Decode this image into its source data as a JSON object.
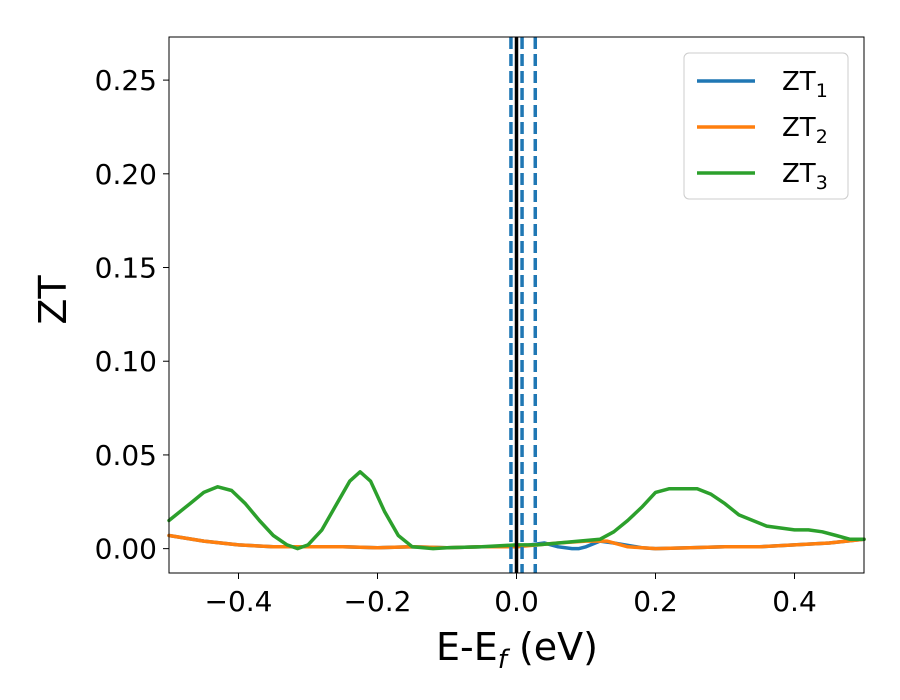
{
  "chart_data": {
    "type": "line",
    "xlabel": {
      "main": "E-E",
      "sub": "f",
      "unit": " (eV)"
    },
    "ylabel": "ZT",
    "xlim": [
      -0.5,
      0.5
    ],
    "ylim": [
      -0.013,
      0.273
    ],
    "xticks": [
      -0.4,
      -0.2,
      0.0,
      0.2,
      0.4
    ],
    "xtick_labels": [
      "−0.4",
      "−0.2",
      "0.0",
      "0.2",
      "0.4"
    ],
    "yticks": [
      0.0,
      0.05,
      0.1,
      0.15,
      0.2,
      0.25
    ],
    "ytick_labels": [
      "0.00",
      "0.05",
      "0.10",
      "0.15",
      "0.20",
      "0.25"
    ],
    "grid": false,
    "legend_position": "top-right",
    "series": [
      {
        "name": "ZT",
        "subscript": "1",
        "color": "#1f77b4",
        "x": [
          -0.5,
          -0.45,
          -0.4,
          -0.35,
          -0.3,
          -0.25,
          -0.2,
          -0.15,
          -0.1,
          -0.05,
          0.0,
          0.02,
          0.04,
          0.06,
          0.08,
          0.09,
          0.1,
          0.12,
          0.14,
          0.18,
          0.2,
          0.25,
          0.3,
          0.35,
          0.4,
          0.45,
          0.5
        ],
        "y": [
          0.007,
          0.004,
          0.002,
          0.001,
          0.001,
          0.001,
          0.0005,
          0.001,
          0.0005,
          0.001,
          0.001,
          0.002,
          0.003,
          0.001,
          0.0,
          0.0,
          0.001,
          0.004,
          0.003,
          0.0005,
          0.0,
          0.0005,
          0.001,
          0.001,
          0.002,
          0.003,
          0.005
        ]
      },
      {
        "name": "ZT",
        "subscript": "2",
        "color": "#ff7f0e",
        "x": [
          -0.5,
          -0.45,
          -0.4,
          -0.35,
          -0.3,
          -0.25,
          -0.2,
          -0.15,
          -0.1,
          -0.05,
          0.0,
          0.03,
          0.06,
          0.1,
          0.13,
          0.16,
          0.2,
          0.25,
          0.3,
          0.35,
          0.4,
          0.45,
          0.5
        ],
        "y": [
          0.007,
          0.004,
          0.002,
          0.001,
          0.001,
          0.001,
          0.0005,
          0.001,
          0.0005,
          0.001,
          0.001,
          0.002,
          0.003,
          0.004,
          0.004,
          0.001,
          0.0,
          0.0005,
          0.001,
          0.001,
          0.002,
          0.003,
          0.005
        ]
      },
      {
        "name": "ZT",
        "subscript": "3",
        "color": "#2ca02c",
        "x": [
          -0.5,
          -0.47,
          -0.45,
          -0.43,
          -0.41,
          -0.39,
          -0.37,
          -0.35,
          -0.33,
          -0.315,
          -0.3,
          -0.28,
          -0.26,
          -0.24,
          -0.225,
          -0.21,
          -0.19,
          -0.17,
          -0.15,
          -0.12,
          -0.1,
          -0.05,
          0.0,
          0.03,
          0.06,
          0.09,
          0.12,
          0.14,
          0.16,
          0.18,
          0.2,
          0.22,
          0.24,
          0.26,
          0.28,
          0.3,
          0.32,
          0.34,
          0.36,
          0.38,
          0.4,
          0.42,
          0.44,
          0.46,
          0.48,
          0.5
        ],
        "y": [
          0.015,
          0.024,
          0.03,
          0.033,
          0.031,
          0.024,
          0.015,
          0.007,
          0.002,
          0.0,
          0.002,
          0.01,
          0.023,
          0.036,
          0.041,
          0.036,
          0.02,
          0.007,
          0.001,
          0.0,
          0.0005,
          0.001,
          0.002,
          0.002,
          0.003,
          0.004,
          0.005,
          0.009,
          0.015,
          0.022,
          0.03,
          0.032,
          0.032,
          0.032,
          0.029,
          0.024,
          0.018,
          0.015,
          0.012,
          0.011,
          0.01,
          0.01,
          0.009,
          0.007,
          0.005,
          0.005
        ]
      }
    ],
    "vlines": [
      {
        "x": 0.0,
        "color": "#000000",
        "style": "solid"
      },
      {
        "x": -0.008,
        "color": "#1f77b4",
        "style": "dashed"
      },
      {
        "x": 0.008,
        "color": "#1f77b4",
        "style": "dashed"
      },
      {
        "x": 0.027,
        "color": "#1f77b4",
        "style": "dashed"
      }
    ]
  }
}
